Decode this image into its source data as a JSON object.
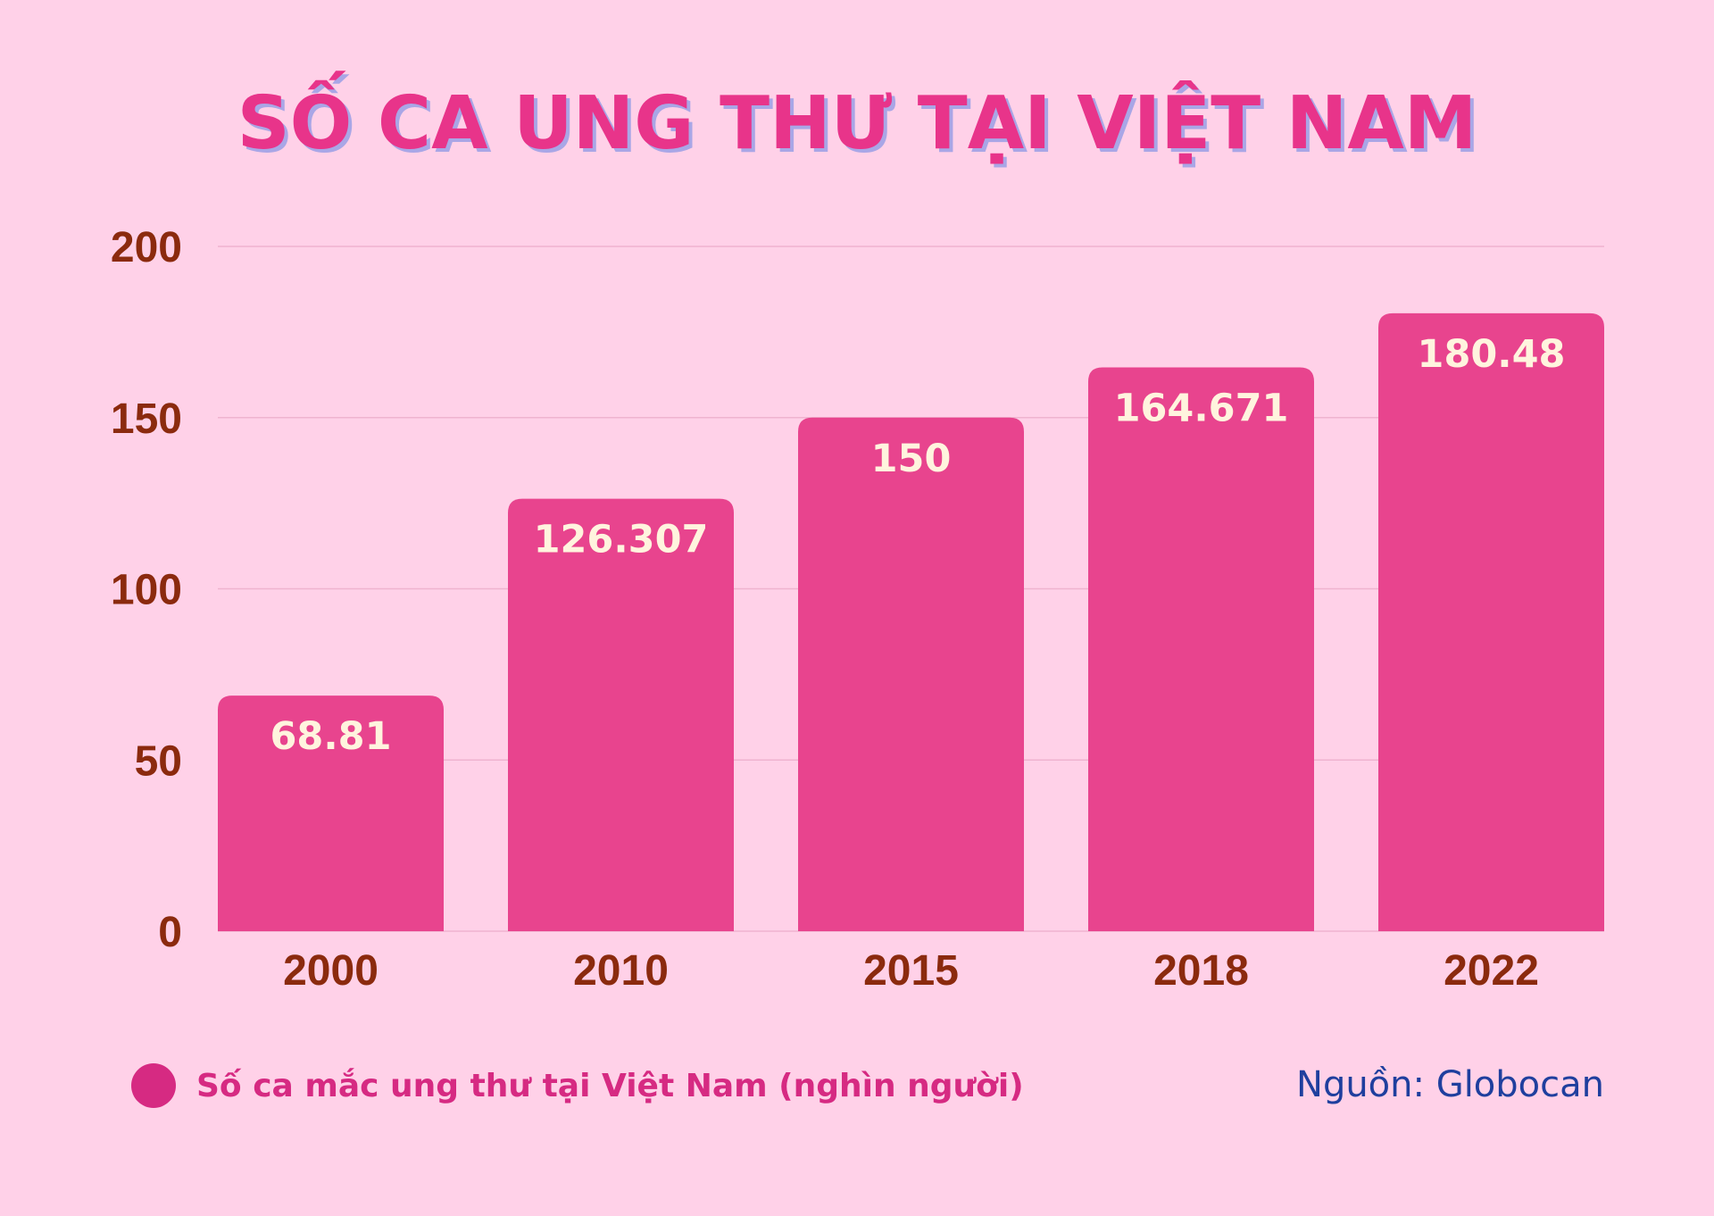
{
  "chart_data": {
    "type": "bar",
    "title": "SỐ CA UNG THƯ TẠI VIỆT NAM",
    "categories": [
      "2000",
      "2010",
      "2015",
      "2018",
      "2022"
    ],
    "series": [
      {
        "name": "Số ca mắc ung thư tại Việt Nam (nghìn người)",
        "values": [
          68.81,
          126.307,
          150,
          164.671,
          180.48
        ],
        "data_labels": [
          "68.81",
          "126.307",
          "150",
          "164.671",
          "180.48"
        ]
      }
    ],
    "ylim": [
      0,
      200
    ],
    "yticks": [
      "0",
      "50",
      "100",
      "150",
      "200"
    ],
    "xlabel": "",
    "ylabel": "",
    "grid": true,
    "legend_position": "bottom-left",
    "source": "Nguồn: Globocan"
  },
  "colors": {
    "background": "#ffd1e8",
    "bar": "#e8448e",
    "title": "#e8348a",
    "title_shadow": "#a9a6e6",
    "tick_text": "#8b2a0e",
    "bar_label": "#fff4de",
    "legend_marker": "#d62a82",
    "legend_text": "#d62a82",
    "source_text": "#1f3f9e"
  }
}
